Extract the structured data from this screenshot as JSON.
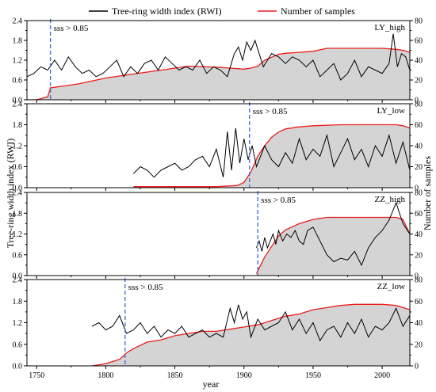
{
  "legend": {
    "rwi_label": "Tree-ring width index (RWI)",
    "samples_label": "Number of samples"
  },
  "axes": {
    "xlabel": "year",
    "ylabel_left": "Tree-ring width index (RWI)",
    "ylabel_right": "Number of samples",
    "x_ticks": [
      "1750",
      "1800",
      "1850",
      "1900",
      "1950",
      "2000"
    ],
    "xlim": [
      1743,
      2020
    ],
    "y_left_ticks": [
      "0.0",
      "0.6",
      "1.2",
      "1.8",
      "2.4"
    ],
    "y_left_lim": [
      0,
      2.4
    ],
    "y_right_ticks": [
      "0",
      "20",
      "40",
      "60",
      "80"
    ],
    "y_right_lim": [
      0,
      80
    ]
  },
  "colors": {
    "rwi": "#000000",
    "samples": "#ee1c1c",
    "fill": "#d4d4d4",
    "sss_line": "#4a6fd8"
  },
  "chart_data": [
    {
      "type": "line",
      "panel": "LY_high",
      "sss_label": "sss > 0.85",
      "sss_year": 1760,
      "rwi": {
        "name": "Tree-ring width index (RWI)",
        "x": [
          1743,
          1748,
          1753,
          1758,
          1763,
          1768,
          1773,
          1778,
          1783,
          1788,
          1793,
          1798,
          1803,
          1808,
          1813,
          1818,
          1823,
          1828,
          1833,
          1838,
          1843,
          1848,
          1853,
          1858,
          1863,
          1868,
          1873,
          1878,
          1883,
          1888,
          1893,
          1896,
          1899,
          1902,
          1905,
          1908,
          1911,
          1914,
          1917,
          1920,
          1925,
          1930,
          1935,
          1940,
          1945,
          1950,
          1955,
          1960,
          1965,
          1970,
          1975,
          1980,
          1985,
          1990,
          1995,
          2000,
          2005,
          2008,
          2011,
          2014,
          2017,
          2020
        ],
        "y": [
          0.7,
          0.8,
          1.0,
          0.9,
          1.2,
          0.9,
          1.3,
          1.0,
          0.8,
          0.9,
          0.7,
          0.8,
          1.0,
          1.2,
          0.7,
          1.0,
          0.8,
          1.1,
          1.2,
          0.9,
          1.3,
          1.1,
          0.9,
          1.0,
          0.9,
          1.2,
          0.8,
          1.0,
          0.9,
          0.7,
          1.4,
          1.6,
          1.2,
          1.75,
          1.5,
          1.8,
          1.4,
          1.0,
          1.2,
          1.4,
          1.3,
          1.1,
          1.3,
          1.2,
          1.0,
          1.2,
          0.7,
          0.9,
          1.1,
          0.6,
          0.8,
          1.2,
          0.7,
          1.0,
          0.9,
          0.8,
          1.1,
          2.0,
          1.0,
          1.4,
          1.3,
          0.9
        ]
      },
      "samples": {
        "name": "Number of samples",
        "x": [
          1743,
          1750,
          1758,
          1760,
          1770,
          1780,
          1800,
          1820,
          1840,
          1860,
          1880,
          1890,
          1900,
          1905,
          1910,
          1915,
          1920,
          1925,
          1930,
          1950,
          1960,
          1970,
          2000,
          2010,
          2015,
          2020
        ],
        "y": [
          0,
          0,
          3,
          12,
          14,
          16,
          22,
          26,
          30,
          34,
          33,
          32,
          31,
          32,
          34,
          40,
          43,
          46,
          47,
          49,
          52,
          52,
          52,
          51,
          50,
          48
        ]
      }
    },
    {
      "type": "line",
      "panel": "LY_low",
      "sss_label": "sss > 0.85",
      "sss_year": 1904,
      "rwi": {
        "name": "Tree-ring width index (RWI)",
        "x": [
          1820,
          1825,
          1830,
          1835,
          1840,
          1845,
          1850,
          1855,
          1860,
          1865,
          1870,
          1875,
          1880,
          1885,
          1888,
          1891,
          1894,
          1897,
          1900,
          1903,
          1906,
          1909,
          1912,
          1915,
          1920,
          1925,
          1930,
          1935,
          1940,
          1945,
          1950,
          1955,
          1960,
          1965,
          1970,
          1975,
          1980,
          1985,
          1990,
          1995,
          2000,
          2005,
          2010,
          2015,
          2020
        ],
        "y": [
          0.4,
          0.6,
          0.5,
          0.3,
          0.5,
          0.6,
          0.7,
          0.5,
          0.6,
          0.8,
          0.9,
          0.6,
          1.1,
          0.3,
          1.6,
          0.5,
          1.7,
          0.7,
          1.4,
          0.8,
          1.2,
          0.6,
          0.9,
          1.2,
          0.8,
          0.6,
          1.0,
          0.7,
          1.4,
          0.8,
          1.1,
          0.9,
          1.5,
          0.6,
          1.0,
          1.4,
          0.8,
          1.1,
          0.6,
          1.2,
          0.9,
          1.5,
          0.7,
          1.3,
          0.5
        ]
      },
      "samples": {
        "name": "Number of samples",
        "x": [
          1820,
          1840,
          1860,
          1880,
          1895,
          1900,
          1905,
          1910,
          1915,
          1920,
          1925,
          1930,
          1940,
          1950,
          1970,
          2000,
          2010,
          2015,
          2020
        ],
        "y": [
          1,
          1,
          1,
          1,
          2,
          5,
          15,
          30,
          40,
          48,
          53,
          56,
          58,
          59,
          60,
          60,
          60,
          59,
          57
        ]
      }
    },
    {
      "type": "line",
      "panel": "ZZ_high",
      "sss_label": "sss > 0.85",
      "sss_year": 1910,
      "rwi": {
        "name": "Tree-ring width index (RWI)",
        "x": [
          1909,
          1911,
          1913,
          1915,
          1917,
          1919,
          1921,
          1923,
          1925,
          1928,
          1931,
          1934,
          1937,
          1940,
          1943,
          1946,
          1950,
          1955,
          1960,
          1965,
          1970,
          1975,
          1980,
          1985,
          1990,
          1995,
          2000,
          2005,
          2010,
          2015,
          2020
        ],
        "y": [
          0.8,
          1.0,
          0.7,
          1.1,
          0.8,
          1.0,
          1.2,
          0.9,
          1.3,
          1.0,
          1.2,
          1.1,
          1.3,
          1.0,
          0.9,
          1.3,
          1.4,
          1.0,
          0.6,
          0.4,
          0.5,
          0.45,
          0.7,
          0.3,
          0.8,
          1.1,
          1.3,
          1.6,
          2.1,
          1.5,
          1.2
        ]
      },
      "samples": {
        "name": "Number of samples",
        "x": [
          1909,
          1912,
          1915,
          1920,
          1925,
          1930,
          1935,
          1940,
          1950,
          1960,
          1970,
          1980,
          1990,
          2000,
          2010,
          2015,
          2020
        ],
        "y": [
          2,
          10,
          18,
          28,
          38,
          44,
          47,
          50,
          54,
          56,
          56,
          56,
          56,
          56,
          56,
          54,
          40
        ]
      }
    },
    {
      "type": "line",
      "panel": "ZZ_low",
      "sss_label": "sss > 0.85",
      "sss_year": 1814,
      "rwi": {
        "name": "Tree-ring width index (RWI)",
        "x": [
          1790,
          1795,
          1800,
          1805,
          1810,
          1815,
          1820,
          1825,
          1830,
          1835,
          1840,
          1845,
          1850,
          1855,
          1860,
          1865,
          1870,
          1875,
          1880,
          1885,
          1890,
          1893,
          1896,
          1899,
          1902,
          1905,
          1910,
          1915,
          1920,
          1925,
          1930,
          1935,
          1940,
          1945,
          1950,
          1955,
          1960,
          1965,
          1970,
          1975,
          1980,
          1985,
          1990,
          1995,
          2000,
          2005,
          2010,
          2015,
          2020
        ],
        "y": [
          1.1,
          1.2,
          1.0,
          1.1,
          1.4,
          0.9,
          1.0,
          1.2,
          0.9,
          1.1,
          0.8,
          1.0,
          0.9,
          1.1,
          0.8,
          0.9,
          1.0,
          0.8,
          0.9,
          0.8,
          1.6,
          1.2,
          1.7,
          1.3,
          1.5,
          0.8,
          1.3,
          1.0,
          1.1,
          1.2,
          1.5,
          1.0,
          1.3,
          0.9,
          1.2,
          0.7,
          1.0,
          1.1,
          0.8,
          1.2,
          0.9,
          1.3,
          0.8,
          1.1,
          1.0,
          1.2,
          1.6,
          1.1,
          1.4
        ]
      },
      "samples": {
        "name": "Number of samples",
        "x": [
          1790,
          1800,
          1810,
          1815,
          1820,
          1830,
          1840,
          1850,
          1860,
          1870,
          1880,
          1890,
          1900,
          1910,
          1920,
          1930,
          1940,
          1950,
          1960,
          1970,
          1980,
          2000,
          2010,
          2015,
          2020
        ],
        "y": [
          0,
          2,
          6,
          12,
          16,
          22,
          24,
          28,
          30,
          32,
          32,
          34,
          36,
          38,
          42,
          46,
          48,
          52,
          54,
          56,
          57,
          57,
          56,
          54,
          52
        ]
      }
    }
  ]
}
